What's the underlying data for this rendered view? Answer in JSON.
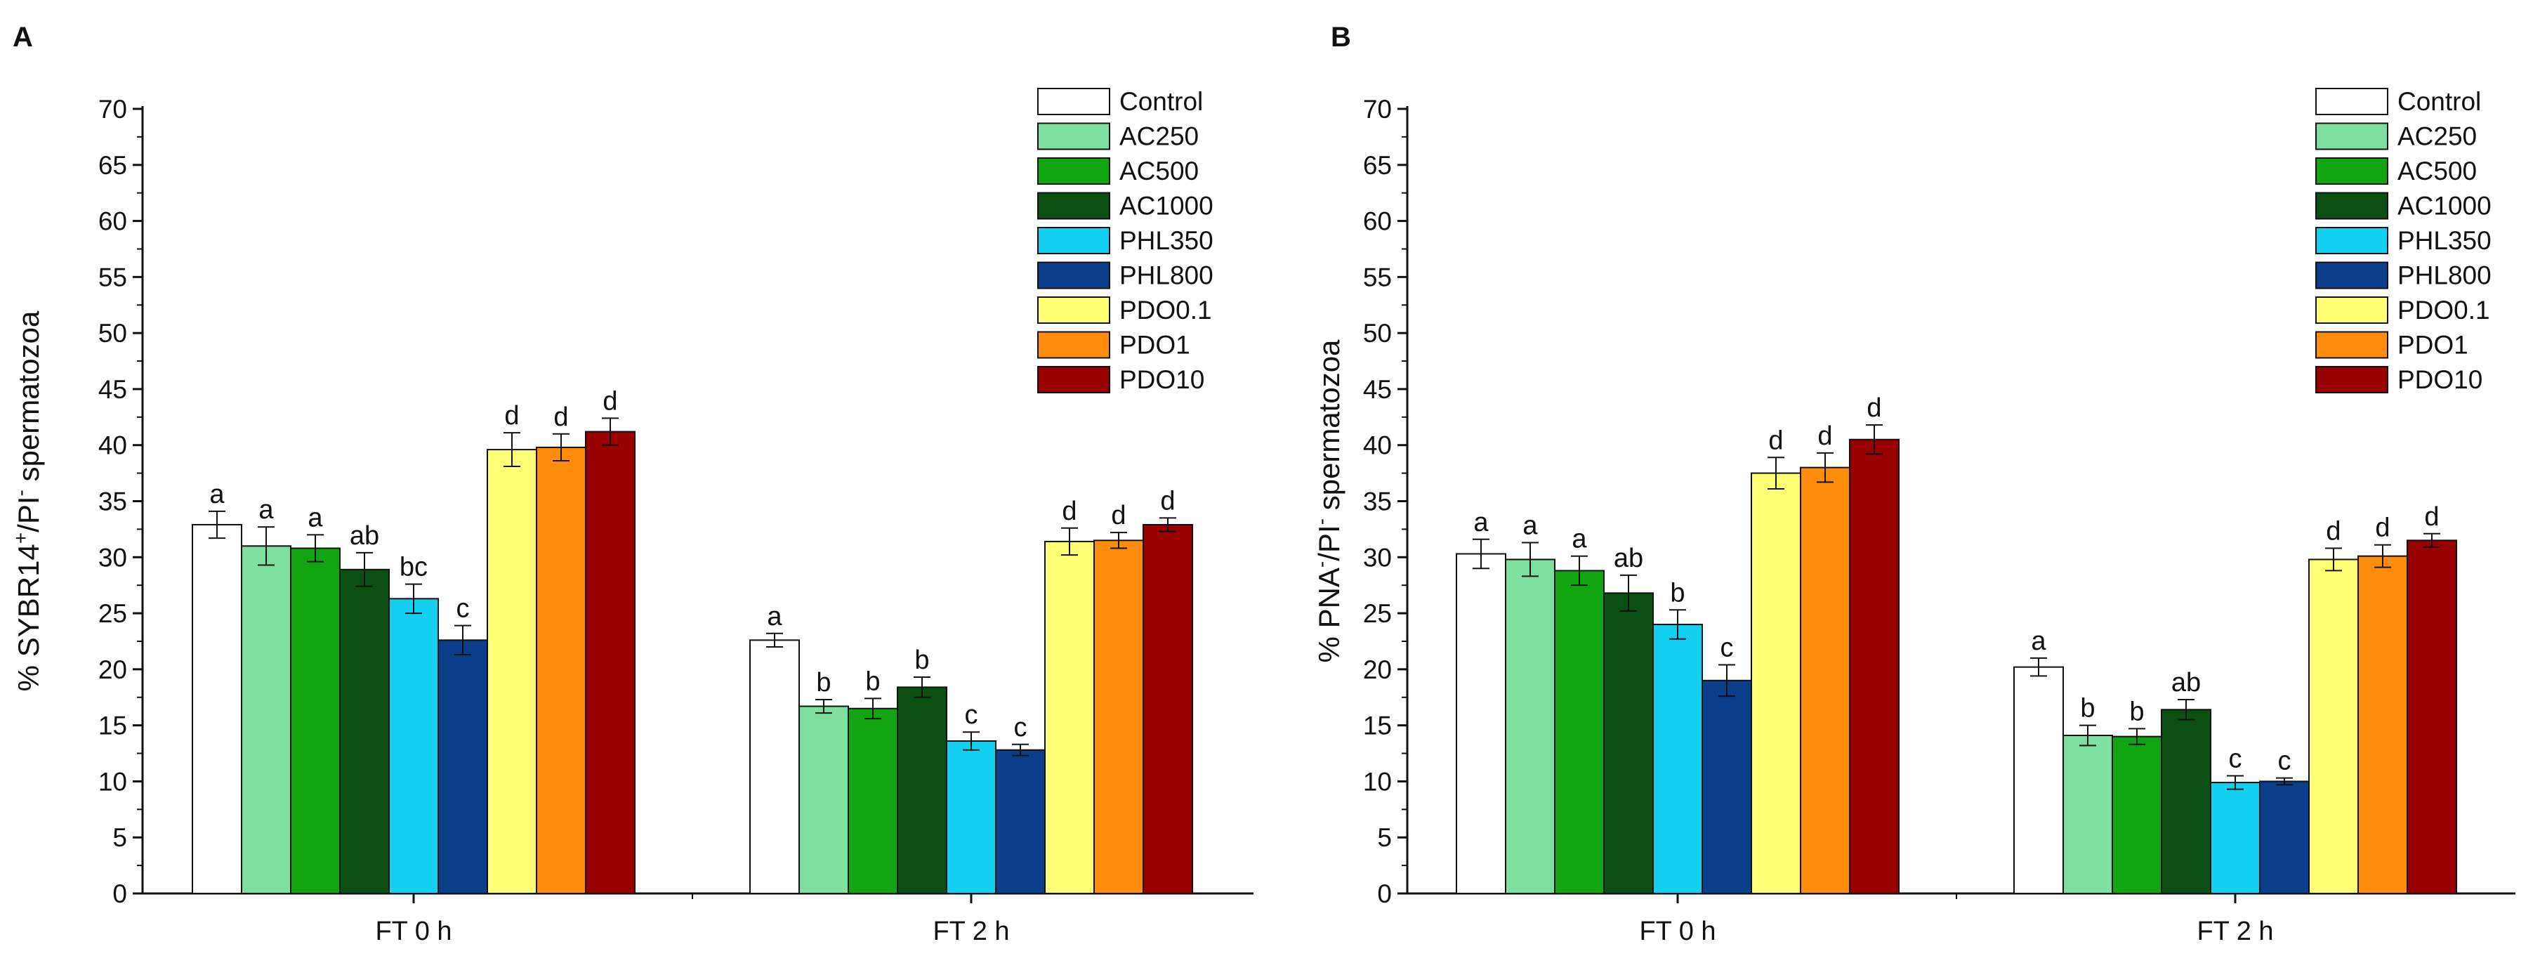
{
  "chart_data": [
    {
      "panel_label": "A",
      "type": "bar",
      "ylabel": {
        "prefix": "% SYBR14",
        "sup1": "+",
        "mid": "/PI",
        "sup2": "-",
        "suffix": " spermatozoa"
      },
      "ylim": [
        0,
        70
      ],
      "yticks": [
        "0",
        "5",
        "10",
        "15",
        "20",
        "25",
        "30",
        "35",
        "40",
        "45",
        "50",
        "55",
        "60",
        "65",
        "70"
      ],
      "categories": [
        "FT 0 h",
        "FT 2 h"
      ],
      "legend_position": "top-right",
      "series": [
        {
          "name": "Control",
          "color": "#ffffff",
          "values": [
            32.9,
            22.6
          ],
          "errors": [
            1.2,
            0.6
          ],
          "letters": [
            "a",
            "a"
          ]
        },
        {
          "name": "AC250",
          "color": "#7ee0a0",
          "values": [
            31.0,
            16.7
          ],
          "errors": [
            1.7,
            0.6
          ],
          "letters": [
            "a",
            "b"
          ]
        },
        {
          "name": "AC500",
          "color": "#11a611",
          "values": [
            30.8,
            16.5
          ],
          "errors": [
            1.2,
            0.9
          ],
          "letters": [
            "a",
            "b"
          ]
        },
        {
          "name": "AC1000",
          "color": "#0b4f12",
          "values": [
            28.9,
            18.4
          ],
          "errors": [
            1.5,
            0.9
          ],
          "letters": [
            "ab",
            "b"
          ]
        },
        {
          "name": "PHL350",
          "color": "#13cff0",
          "values": [
            26.3,
            13.6
          ],
          "errors": [
            1.3,
            0.8
          ],
          "letters": [
            "bc",
            "c"
          ]
        },
        {
          "name": "PHL800",
          "color": "#0b3f8c",
          "values": [
            22.6,
            12.8
          ],
          "errors": [
            1.3,
            0.5
          ],
          "letters": [
            "c",
            "c"
          ]
        },
        {
          "name": "PDO0.1",
          "color": "#ffff73",
          "values": [
            39.6,
            31.4
          ],
          "errors": [
            1.5,
            1.2
          ],
          "letters": [
            "d",
            "d"
          ]
        },
        {
          "name": "PDO1",
          "color": "#ff8c0a",
          "values": [
            39.8,
            31.5
          ],
          "errors": [
            1.2,
            0.7
          ],
          "letters": [
            "d",
            "d"
          ]
        },
        {
          "name": "PDO10",
          "color": "#990000",
          "values": [
            41.2,
            32.9
          ],
          "errors": [
            1.2,
            0.6
          ],
          "letters": [
            "d",
            "d"
          ]
        }
      ]
    },
    {
      "panel_label": "B",
      "type": "bar",
      "ylabel": {
        "prefix": "% PNA",
        "sup1": "-",
        "mid": "/PI",
        "sup2": "-",
        "suffix": " spermatozoa"
      },
      "ylim": [
        0,
        70
      ],
      "yticks": [
        "0",
        "5",
        "10",
        "15",
        "20",
        "25",
        "30",
        "35",
        "40",
        "45",
        "50",
        "55",
        "60",
        "65",
        "70"
      ],
      "categories": [
        "FT 0 h",
        "FT 2 h"
      ],
      "legend_position": "top-right",
      "series": [
        {
          "name": "Control",
          "color": "#ffffff",
          "values": [
            30.3,
            20.2
          ],
          "errors": [
            1.3,
            0.8
          ],
          "letters": [
            "a",
            "a"
          ]
        },
        {
          "name": "AC250",
          "color": "#7ee0a0",
          "values": [
            29.8,
            14.1
          ],
          "errors": [
            1.5,
            0.9
          ],
          "letters": [
            "a",
            "b"
          ]
        },
        {
          "name": "AC500",
          "color": "#11a611",
          "values": [
            28.8,
            14.0
          ],
          "errors": [
            1.3,
            0.7
          ],
          "letters": [
            "a",
            "b"
          ]
        },
        {
          "name": "AC1000",
          "color": "#0b4f12",
          "values": [
            26.8,
            16.4
          ],
          "errors": [
            1.6,
            0.9
          ],
          "letters": [
            "ab",
            "ab"
          ]
        },
        {
          "name": "PHL350",
          "color": "#13cff0",
          "values": [
            24.0,
            9.9
          ],
          "errors": [
            1.3,
            0.6
          ],
          "letters": [
            "b",
            "c"
          ]
        },
        {
          "name": "PHL800",
          "color": "#0b3f8c",
          "values": [
            19.0,
            10.0
          ],
          "errors": [
            1.4,
            0.3
          ],
          "letters": [
            "c",
            "c"
          ]
        },
        {
          "name": "PDO0.1",
          "color": "#ffff73",
          "values": [
            37.5,
            29.8
          ],
          "errors": [
            1.4,
            1.0
          ],
          "letters": [
            "d",
            "d"
          ]
        },
        {
          "name": "PDO1",
          "color": "#ff8c0a",
          "values": [
            38.0,
            30.1
          ],
          "errors": [
            1.3,
            1.0
          ],
          "letters": [
            "d",
            "d"
          ]
        },
        {
          "name": "PDO10",
          "color": "#990000",
          "values": [
            40.5,
            31.5
          ],
          "errors": [
            1.3,
            0.6
          ],
          "letters": [
            "d",
            "d"
          ]
        }
      ]
    }
  ]
}
